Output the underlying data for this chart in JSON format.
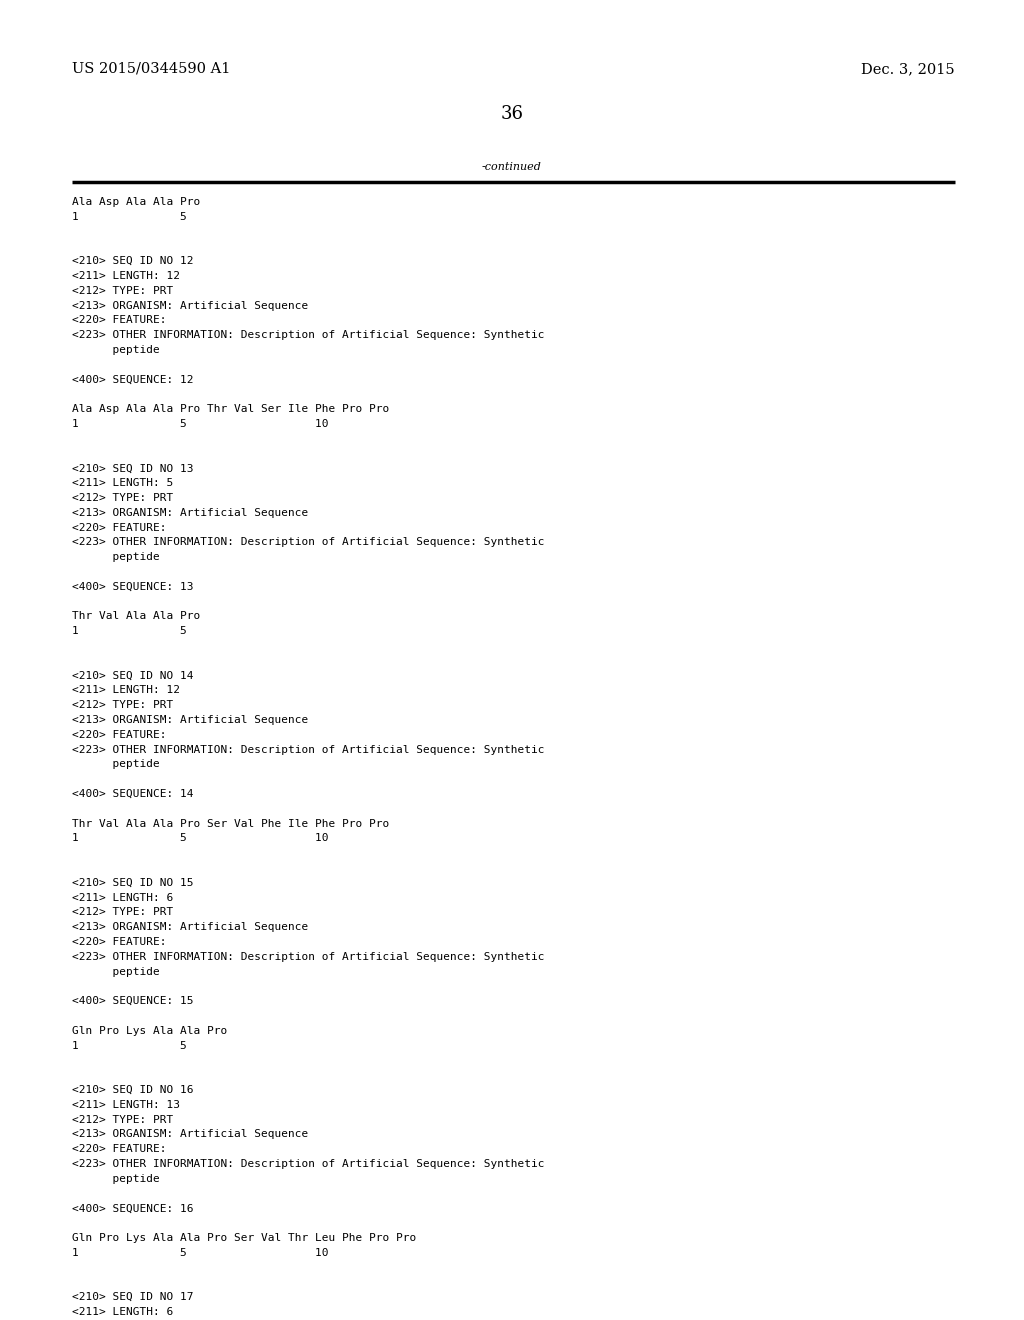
{
  "bg_color": "#ffffff",
  "header_left": "US 2015/0344590 A1",
  "header_right": "Dec. 3, 2015",
  "page_number": "36",
  "continued_text": "-continued",
  "font_size_header": 10.5,
  "font_size_body": 8.0,
  "font_size_page": 13,
  "mono_font": "DejaVu Sans Mono",
  "serif_font": "DejaVu Serif",
  "content": [
    "Ala Asp Ala Ala Pro",
    "1               5",
    "",
    "",
    "<210> SEQ ID NO 12",
    "<211> LENGTH: 12",
    "<212> TYPE: PRT",
    "<213> ORGANISM: Artificial Sequence",
    "<220> FEATURE:",
    "<223> OTHER INFORMATION: Description of Artificial Sequence: Synthetic",
    "      peptide",
    "",
    "<400> SEQUENCE: 12",
    "",
    "Ala Asp Ala Ala Pro Thr Val Ser Ile Phe Pro Pro",
    "1               5                   10",
    "",
    "",
    "<210> SEQ ID NO 13",
    "<211> LENGTH: 5",
    "<212> TYPE: PRT",
    "<213> ORGANISM: Artificial Sequence",
    "<220> FEATURE:",
    "<223> OTHER INFORMATION: Description of Artificial Sequence: Synthetic",
    "      peptide",
    "",
    "<400> SEQUENCE: 13",
    "",
    "Thr Val Ala Ala Pro",
    "1               5",
    "",
    "",
    "<210> SEQ ID NO 14",
    "<211> LENGTH: 12",
    "<212> TYPE: PRT",
    "<213> ORGANISM: Artificial Sequence",
    "<220> FEATURE:",
    "<223> OTHER INFORMATION: Description of Artificial Sequence: Synthetic",
    "      peptide",
    "",
    "<400> SEQUENCE: 14",
    "",
    "Thr Val Ala Ala Pro Ser Val Phe Ile Phe Pro Pro",
    "1               5                   10",
    "",
    "",
    "<210> SEQ ID NO 15",
    "<211> LENGTH: 6",
    "<212> TYPE: PRT",
    "<213> ORGANISM: Artificial Sequence",
    "<220> FEATURE:",
    "<223> OTHER INFORMATION: Description of Artificial Sequence: Synthetic",
    "      peptide",
    "",
    "<400> SEQUENCE: 15",
    "",
    "Gln Pro Lys Ala Ala Pro",
    "1               5",
    "",
    "",
    "<210> SEQ ID NO 16",
    "<211> LENGTH: 13",
    "<212> TYPE: PRT",
    "<213> ORGANISM: Artificial Sequence",
    "<220> FEATURE:",
    "<223> OTHER INFORMATION: Description of Artificial Sequence: Synthetic",
    "      peptide",
    "",
    "<400> SEQUENCE: 16",
    "",
    "Gln Pro Lys Ala Ala Pro Ser Val Thr Leu Phe Pro Pro",
    "1               5                   10",
    "",
    "",
    "<210> SEQ ID NO 17",
    "<211> LENGTH: 6"
  ]
}
